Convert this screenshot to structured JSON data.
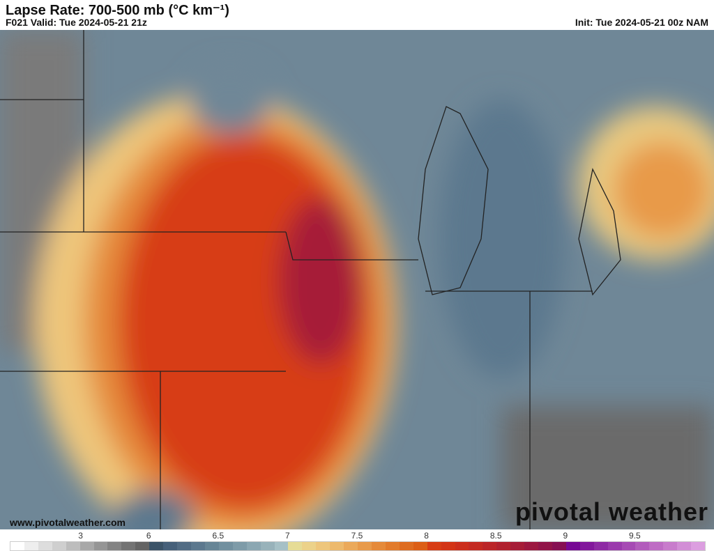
{
  "header": {
    "title": "Lapse Rate: 700-500 mb (°C km⁻¹)",
    "valid": "F021 Valid: Tue 2024-05-21 21z",
    "init": "Init: Tue 2024-05-21 00z NAM"
  },
  "footer": {
    "url": "www.pivotalweather.com",
    "logo": "pivotal weather"
  },
  "colorbar": {
    "ticks": [
      {
        "v": "3",
        "p": 0.102
      },
      {
        "v": "6",
        "p": 0.2
      },
      {
        "v": "6.5",
        "p": 0.3
      },
      {
        "v": "7",
        "p": 0.4
      },
      {
        "v": "7.5",
        "p": 0.5
      },
      {
        "v": "8",
        "p": 0.6
      },
      {
        "v": "8.5",
        "p": 0.7
      },
      {
        "v": "9",
        "p": 0.8
      },
      {
        "v": "9.5",
        "p": 0.9
      }
    ],
    "colors": [
      "#ffffff",
      "#eeeeee",
      "#dddddd",
      "#cfcfcf",
      "#bdbdbd",
      "#a8a8a8",
      "#959595",
      "#838383",
      "#737373",
      "#646464",
      "#3b5368",
      "#46607a",
      "#526c84",
      "#5c788e",
      "#678596",
      "#72909f",
      "#7e9ba8",
      "#8ba7b2",
      "#98b2ba",
      "#a6c0c6",
      "#e6dc96",
      "#ecd28a",
      "#eec67c",
      "#edb96c",
      "#eba95a",
      "#e89a4a",
      "#e58a3a",
      "#e27b2c",
      "#de6c20",
      "#dc5e16",
      "#d73c14",
      "#d33416",
      "#cc2e1c",
      "#c42a22",
      "#bb2528",
      "#b1212e",
      "#a61d38",
      "#9c1840",
      "#911448",
      "#860f52",
      "#760894",
      "#82189c",
      "#8e2aa4",
      "#9a3aac",
      "#a64ab4",
      "#b25cbc",
      "#be6cc4",
      "#c87ccc",
      "#d28ed6",
      "#dc9ee0"
    ]
  },
  "map": {
    "accent_low": "#6f8797",
    "accent_high": "#c42a22"
  }
}
